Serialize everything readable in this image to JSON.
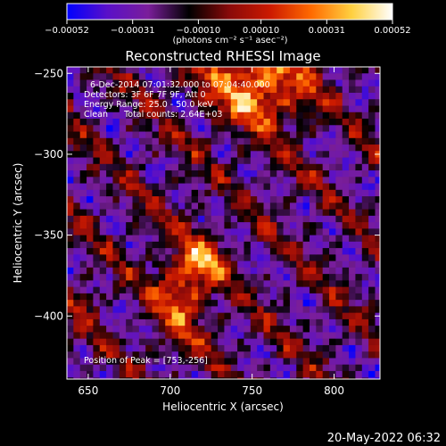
{
  "colorbar": {
    "ticks": [
      "−0.00052",
      "−0.00031",
      "−0.00010",
      "0.00010",
      "0.00031",
      "0.00052"
    ],
    "tick_values": [
      -0.00052,
      -0.00031,
      -0.0001,
      0.0001,
      0.00031,
      0.00052
    ],
    "range": [
      -0.00052,
      0.00052
    ],
    "units_label": "(photons cm⁻² s⁻¹ asec⁻²)",
    "colors": [
      "#0000ff",
      "#5a10c8",
      "#7a1e9a",
      "#000000",
      "#8a0a0a",
      "#cc1a00",
      "#ff6a00",
      "#ffd040",
      "#ffffff"
    ]
  },
  "header": {
    "line1": "6-Dec-2014 07:01:32.000 to 07:04:40.000",
    "line2": "Detectors: 3F 6F 7F 9F, Att 0",
    "line3": "Energy Range: 25.0 - 50.0 keV",
    "line4": "Clean      Total counts: 2.64E+03"
  },
  "footer_note": "Position of Peak = [753,-256]",
  "timestamp": "20-May-2022 06:32",
  "chart_data": {
    "type": "heatmap",
    "title": "Reconstructed RHESSI Image",
    "xlabel": "Heliocentric X (arcsec)",
    "ylabel": "Heliocentric Y (arcsec)",
    "xlim": [
      637,
      828
    ],
    "ylim": [
      -439,
      -246
    ],
    "x_ticks": [
      650,
      700,
      750,
      800
    ],
    "x_tick_labels": [
      "650",
      "700",
      "750",
      "800"
    ],
    "y_ticks": [
      -250,
      -300,
      -350,
      -400
    ],
    "y_tick_labels": [
      "−250",
      "−300",
      "−350",
      "−400"
    ],
    "grid_cell_arcsec": 4,
    "grid_dims": [
      48,
      48
    ],
    "value_range": [
      -0.00052,
      0.00052
    ],
    "peak": {
      "x": 753,
      "y": -256,
      "value": 0.00052
    },
    "sources": [
      {
        "x": 753,
        "y": -256,
        "sx": 22,
        "sy": 18,
        "amp": 1.0
      },
      {
        "x": 708,
        "y": -385,
        "sx": 12,
        "sy": 20,
        "amp": 0.75
      },
      {
        "x": 722,
        "y": -365,
        "sx": 10,
        "sy": 8,
        "amp": 0.6
      },
      {
        "x": 648,
        "y": -390,
        "sx": 6,
        "sy": 6,
        "amp": 0.4
      }
    ]
  }
}
